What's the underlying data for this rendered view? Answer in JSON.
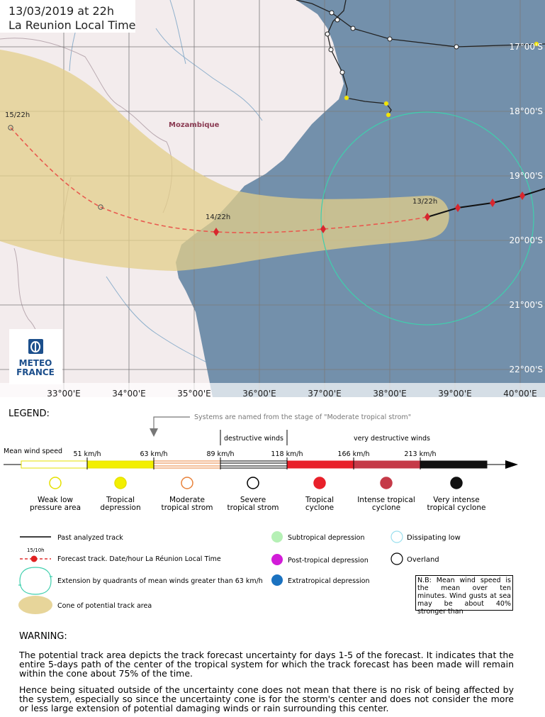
{
  "map": {
    "timestamp": [
      "13/03/2019 at 22h",
      "La Reunion Local Time"
    ],
    "country": "Mozambique",
    "forecast_labels": [
      "15/22h",
      "14/22h",
      "13/22h"
    ],
    "lat_labels": [
      "17°00'S",
      "18°00'S",
      "19°00'S",
      "20°00'S",
      "21°00'S",
      "22°00'S"
    ],
    "lon_labels": [
      "33°00'E",
      "34°00'E",
      "35°00'E",
      "36°00'E",
      "37°00'E",
      "38°00'E",
      "39°00'E",
      "40°00'E"
    ],
    "logo": [
      "METEO",
      "FRANCE"
    ]
  },
  "legend": {
    "title": "LEGEND:",
    "naming_note": "Systems are named from the stage of \"Moderate tropical strom\"",
    "wind_groups": [
      "destructive winds",
      "very destructive winds"
    ],
    "mean_wind_label": "Mean wind speed",
    "thresholds": [
      "51 km/h",
      "63 km/h",
      "89 km/h",
      "118 km/h",
      "166 km/h",
      "213 km/h"
    ],
    "categories": [
      [
        "Weak low",
        "pressure area"
      ],
      [
        "Tropical",
        "depression"
      ],
      [
        "Moderate",
        "tropical strom"
      ],
      [
        "Severe",
        "tropical strom"
      ],
      [
        "Tropical",
        "cyclone"
      ],
      [
        "Intense tropical",
        "cyclone"
      ],
      [
        "Very intense",
        "tropical cyclone"
      ]
    ],
    "track_items": [
      "Past analyzed track",
      "Forecast track. Date/hour La Réunion Local Time",
      "Extension by quadrants of mean winds greater than 63 km/h",
      "Cone of potential track area"
    ],
    "sample_label": "15/10h",
    "other_types": [
      "Subtropical depression",
      "Post-tropical depression",
      "Extratropical depression",
      "Dissipating low",
      "Overland"
    ],
    "note": "N.B: Mean wind speed is the mean over ten minutes. Wind gusts at sea may be about 40% stronger than"
  },
  "warning": {
    "title": "WARNING:",
    "paragraphs": [
      "The potential track area depicts the track forecast uncertainty for days 1-5 of the forecast. It indicates that the entire 5-days path of the center of the tropical system for which the track forecast has been made will remain within the cone about 75% of the time.",
      "Hence being situated outside of the uncertainty cone does not mean that there is no risk of being affected by the system, especially so since the uncertainty cone is for the storm's center and does not consider the more or less large extension of potential damaging winds or rain surrounding this center."
    ]
  }
}
